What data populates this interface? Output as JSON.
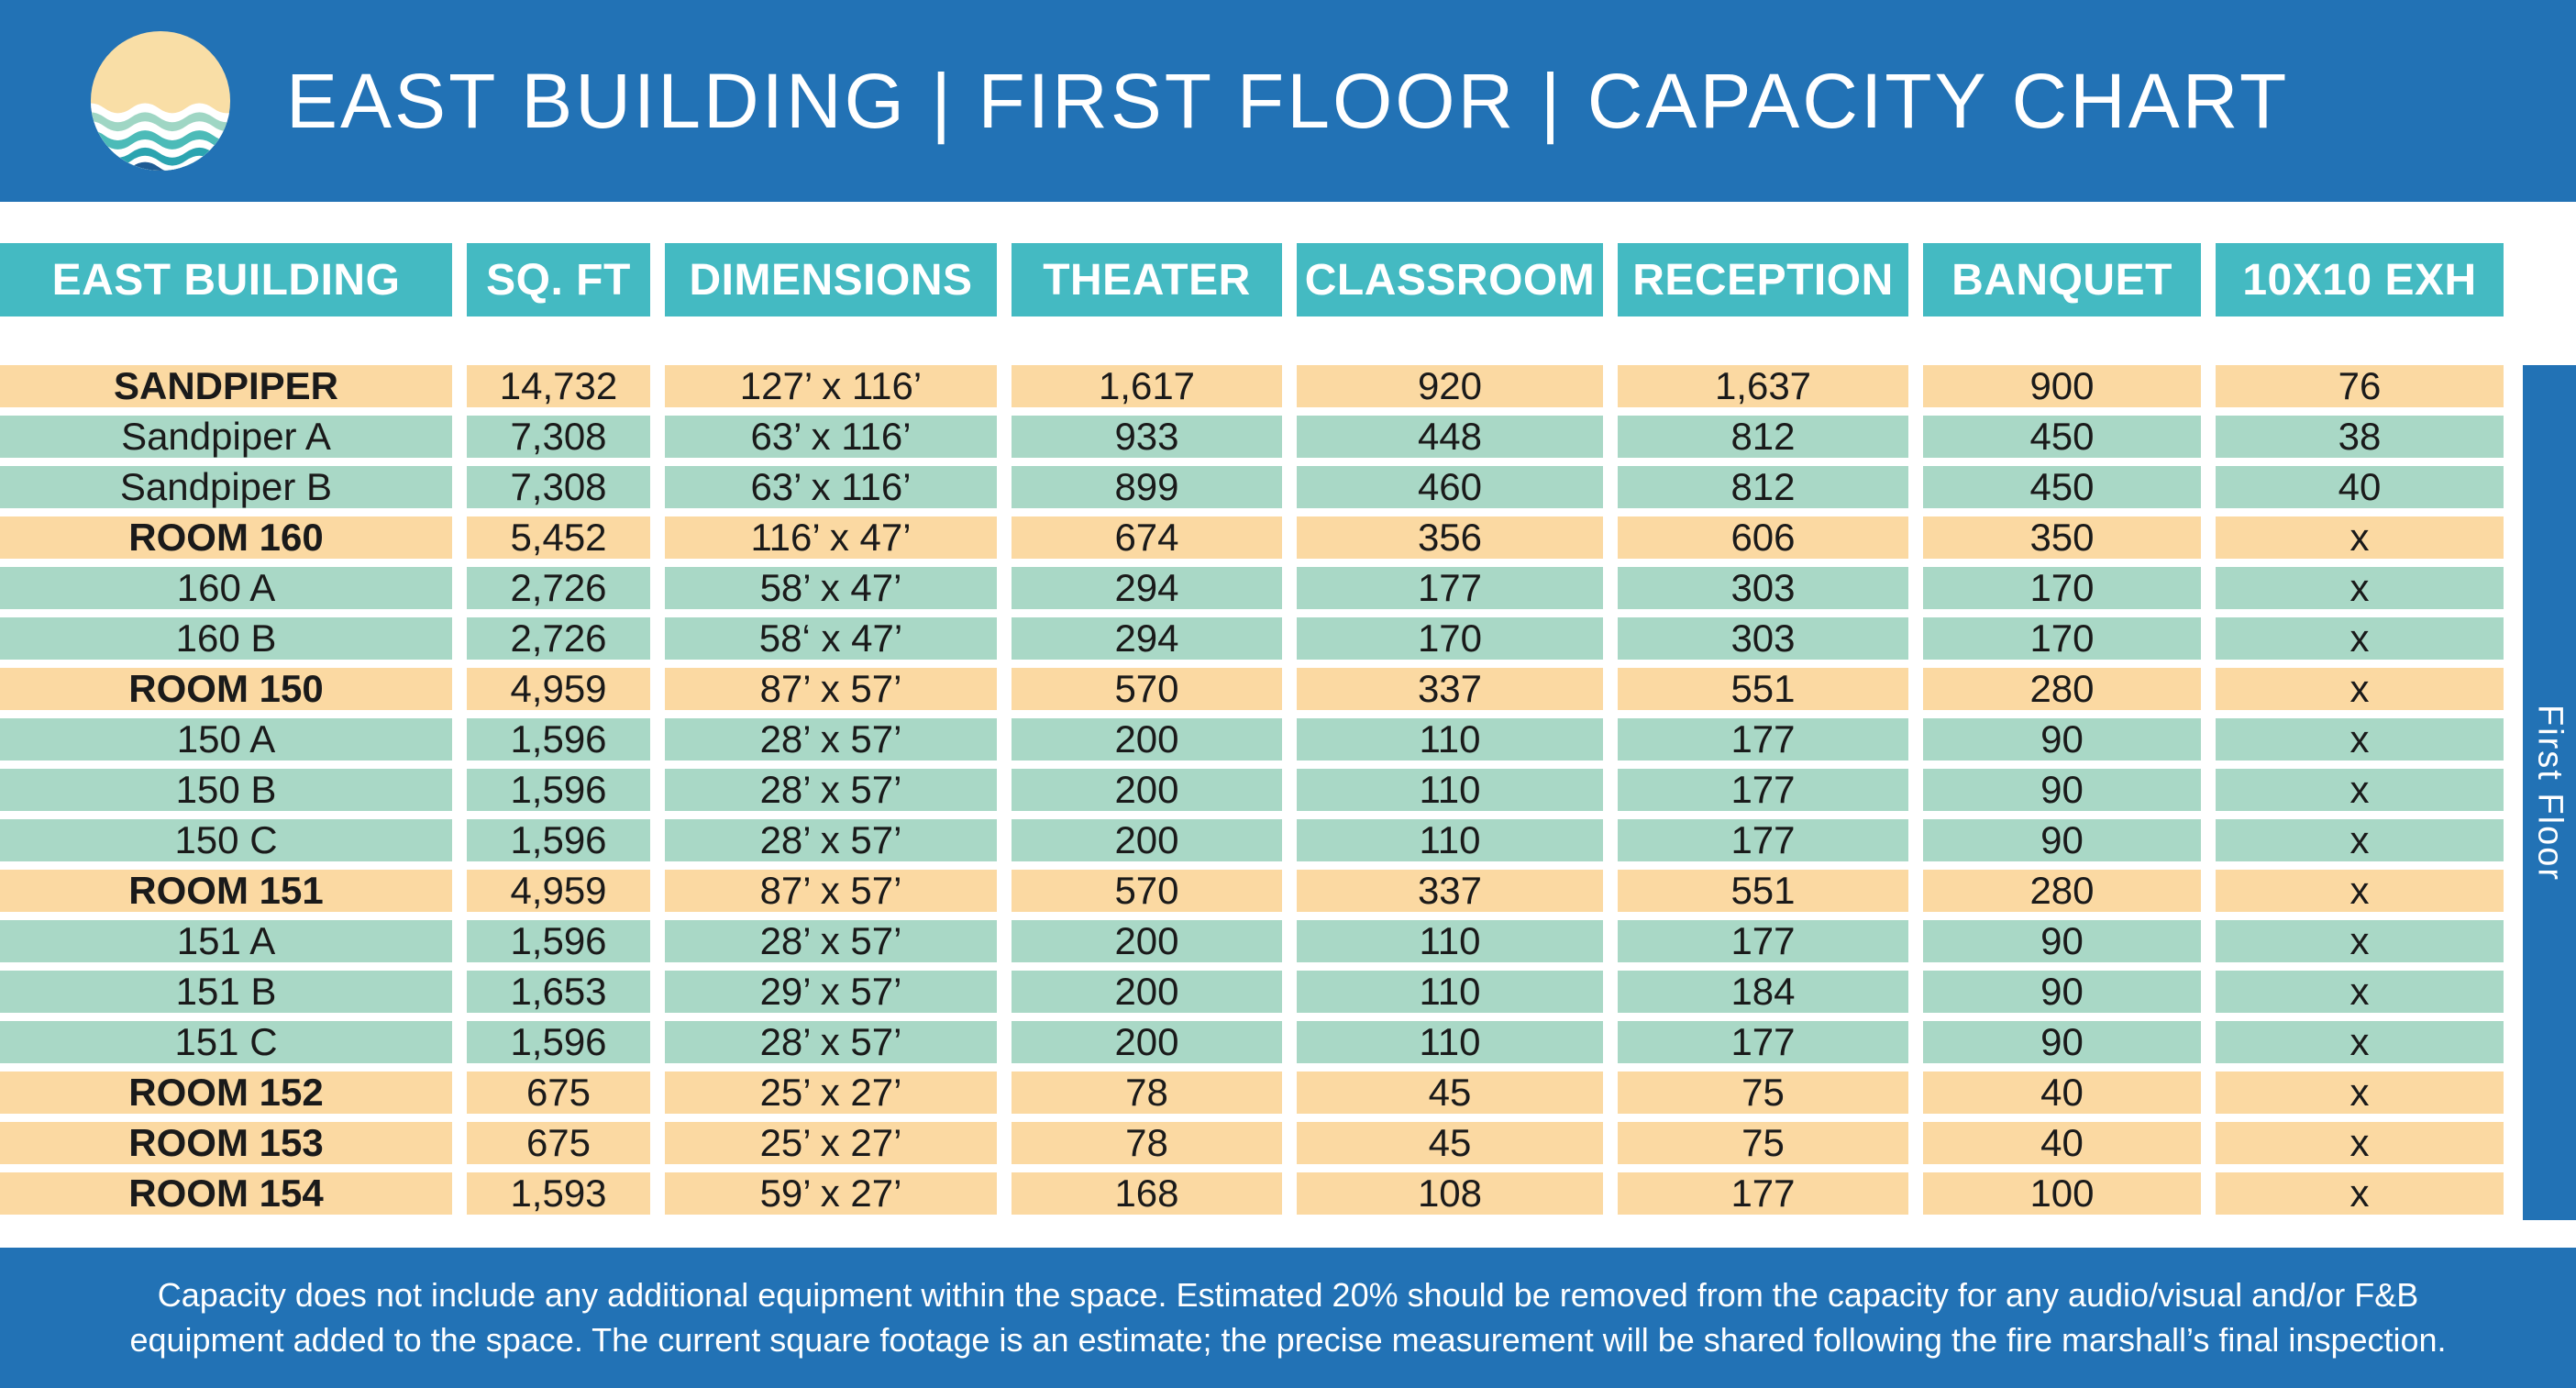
{
  "header": {
    "title": "EAST BUILDING | FIRST FLOOR | CAPACITY CHART",
    "logo": "sun-over-waves"
  },
  "table": {
    "columns": [
      "EAST BUILDING",
      "SQ. FT",
      "DIMENSIONS",
      "THEATER",
      "CLASSROOM",
      "RECEPTION",
      "BANQUET",
      "10X10 EXH"
    ],
    "rows": [
      {
        "style": "section",
        "cells": [
          "SANDPIPER",
          "14,732",
          "127’ x 116’",
          "1,617",
          "920",
          "1,637",
          "900",
          "76"
        ]
      },
      {
        "style": "sub",
        "cells": [
          "Sandpiper A",
          "7,308",
          "63’ x 116’",
          "933",
          "448",
          "812",
          "450",
          "38"
        ]
      },
      {
        "style": "sub",
        "cells": [
          "Sandpiper B",
          "7,308",
          "63’ x 116’",
          "899",
          "460",
          "812",
          "450",
          "40"
        ]
      },
      {
        "style": "section",
        "cells": [
          "ROOM 160",
          "5,452",
          "116’ x 47’",
          "674",
          "356",
          "606",
          "350",
          "x"
        ]
      },
      {
        "style": "sub",
        "cells": [
          "160 A",
          "2,726",
          "58’ x 47’",
          "294",
          "177",
          "303",
          "170",
          "x"
        ]
      },
      {
        "style": "sub",
        "cells": [
          "160 B",
          "2,726",
          "58‘ x 47’",
          "294",
          "170",
          "303",
          "170",
          "x"
        ]
      },
      {
        "style": "section",
        "cells": [
          "ROOM 150",
          "4,959",
          "87’ x 57’",
          "570",
          "337",
          "551",
          "280",
          "x"
        ]
      },
      {
        "style": "sub",
        "cells": [
          "150 A",
          "1,596",
          "28’ x 57’",
          "200",
          "110",
          "177",
          "90",
          "x"
        ]
      },
      {
        "style": "sub",
        "cells": [
          "150 B",
          "1,596",
          "28’ x 57’",
          "200",
          "110",
          "177",
          "90",
          "x"
        ]
      },
      {
        "style": "sub",
        "cells": [
          "150 C",
          "1,596",
          "28’ x 57’",
          "200",
          "110",
          "177",
          "90",
          "x"
        ]
      },
      {
        "style": "section",
        "cells": [
          "ROOM 151",
          "4,959",
          "87’ x 57’",
          "570",
          "337",
          "551",
          "280",
          "x"
        ]
      },
      {
        "style": "sub",
        "cells": [
          "151 A",
          "1,596",
          "28’ x 57’",
          "200",
          "110",
          "177",
          "90",
          "x"
        ]
      },
      {
        "style": "sub",
        "cells": [
          "151 B",
          "1,653",
          "29’ x 57’",
          "200",
          "110",
          "184",
          "90",
          "x"
        ]
      },
      {
        "style": "sub",
        "cells": [
          "151 C",
          "1,596",
          "28’ x 57’",
          "200",
          "110",
          "177",
          "90",
          "x"
        ]
      },
      {
        "style": "section",
        "cells": [
          "ROOM 152",
          "675",
          "25’ x 27’",
          "78",
          "45",
          "75",
          "40",
          "x"
        ]
      },
      {
        "style": "section",
        "cells": [
          "ROOM 153",
          "675",
          "25’ x 27’",
          "78",
          "45",
          "75",
          "40",
          "x"
        ]
      },
      {
        "style": "section",
        "cells": [
          "ROOM 154",
          "1,593",
          "59’ x 27’",
          "168",
          "108",
          "177",
          "100",
          "x"
        ]
      }
    ]
  },
  "sidebar": {
    "label": "First Floor"
  },
  "footer": {
    "lines": [
      "Capacity does not include any additional equipment within the space. Estimated 20% should be removed from the capacity for any audio/visual and/or F&B",
      "equipment added to the space. The current square footage is an estimate; the precise measurement will be shared following the fire marshall’s final inspection."
    ]
  },
  "colors": {
    "banner_blue": "#2272B5",
    "header_teal": "#44BAC2",
    "section_row_peach": "#FBD9A2",
    "sub_row_green": "#A9D8C6",
    "logo_sand": "#F9DEA6",
    "logo_wave_light_teal": "#9FD6C4",
    "logo_wave_mid_teal": "#4CBBB8",
    "logo_wave_deep_teal": "#2BA4B0",
    "logo_wave_navy": "#1E5B94",
    "text_dark": "#1A1A1A",
    "text_white": "#FFFFFF"
  }
}
